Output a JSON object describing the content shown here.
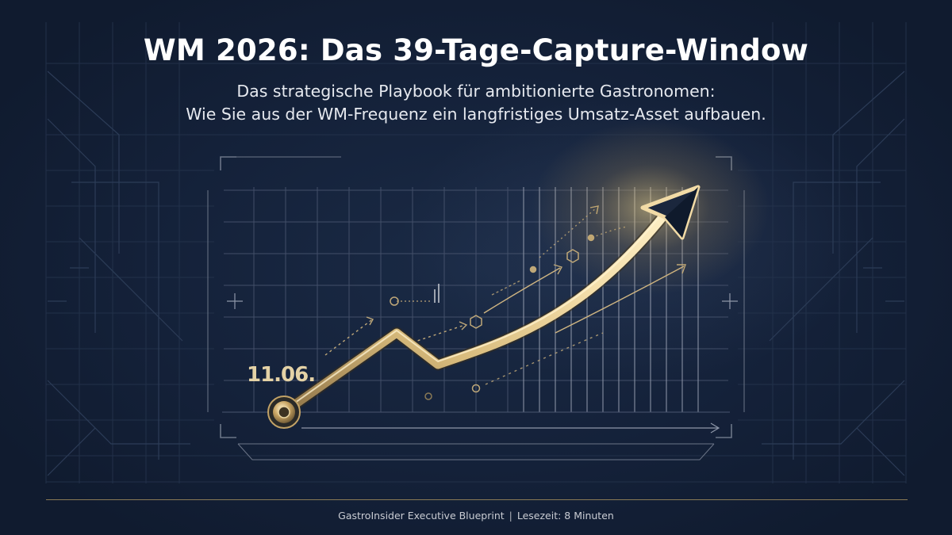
{
  "header": {
    "title": "WM 2026: Das 39-Tage-Capture-Window",
    "subtitle_line1": "Das strategische Playbook für ambitionierte Gastronomen:",
    "subtitle_line2": "Wie Sie aus der WM-Frequenz ein langfristiges Umsatz-Asset aufbauen."
  },
  "chart": {
    "start_label": "11.06."
  },
  "footer": {
    "source": "GastroInsider Executive Blueprint",
    "separator": "|",
    "reading_time": "Lesezeit: 8 Minuten"
  },
  "colors": {
    "background": "#14223a",
    "gold": "#d8b978",
    "grid": "#2c3b55"
  }
}
